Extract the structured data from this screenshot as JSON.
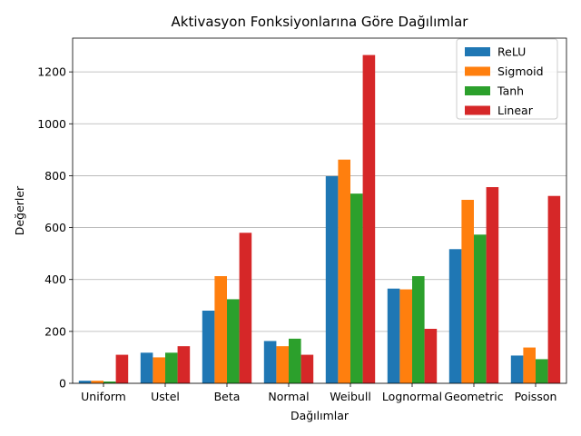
{
  "chart_data": {
    "type": "bar",
    "title": "Aktivasyon Fonksiyonlarına Göre Dağılımlar",
    "xlabel": "Dağılımlar",
    "ylabel": "Değerler",
    "categories": [
      "Uniform",
      "Ustel",
      "Beta",
      "Normal",
      "Weibull",
      "Lognormal",
      "Geometric",
      "Poisson"
    ],
    "series": [
      {
        "name": "ReLU",
        "color": "#1f77b4",
        "values": [
          10,
          118,
          280,
          163,
          798,
          365,
          517,
          107
        ]
      },
      {
        "name": "Sigmoid",
        "color": "#ff7f0e",
        "values": [
          10,
          100,
          413,
          143,
          862,
          362,
          707,
          138
        ]
      },
      {
        "name": "Tanh",
        "color": "#2ca02c",
        "values": [
          7,
          118,
          324,
          172,
          731,
          413,
          573,
          93
        ]
      },
      {
        "name": "Linear",
        "color": "#d62728",
        "values": [
          110,
          143,
          580,
          110,
          1265,
          210,
          756,
          722
        ]
      }
    ],
    "ylim": [
      0,
      1330
    ],
    "yticks": [
      0,
      200,
      400,
      600,
      800,
      1000,
      1200
    ],
    "grid": "y",
    "legend_position": "top-right"
  }
}
